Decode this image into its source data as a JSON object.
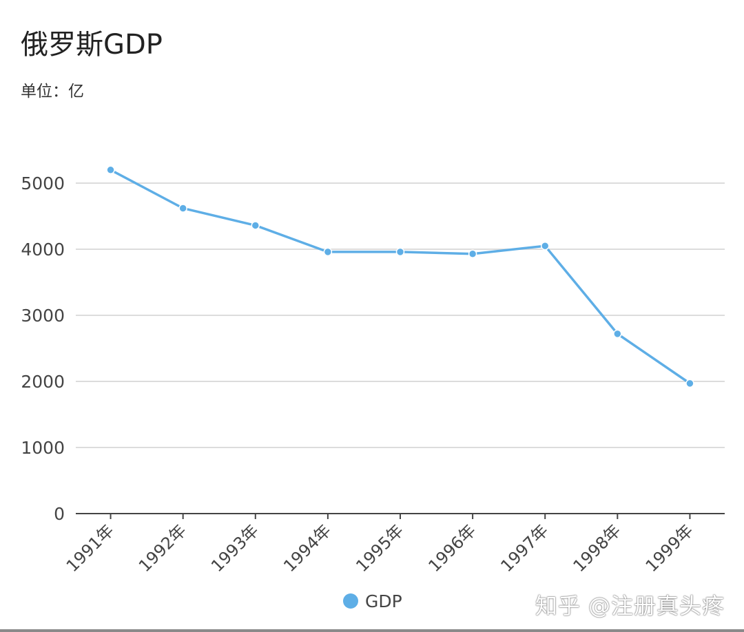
{
  "chart_data": {
    "type": "line",
    "title": "俄罗斯GDP",
    "subtitle": "单位：亿",
    "categories": [
      "1991年",
      "1992年",
      "1993年",
      "1994年",
      "1995年",
      "1996年",
      "1997年",
      "1998年",
      "1999年"
    ],
    "series": [
      {
        "name": "GDP",
        "values": [
          5200,
          4620,
          4360,
          3960,
          3960,
          3930,
          4050,
          2720,
          1970
        ],
        "color": "#5eaee6"
      }
    ],
    "ylim": [
      0,
      5000
    ],
    "yticks": [
      0,
      1000,
      2000,
      3000,
      4000,
      5000
    ],
    "grid": true,
    "legend": "bottom-center",
    "xlabel": "",
    "ylabel": ""
  },
  "watermark": "知乎 @注册真头疼"
}
